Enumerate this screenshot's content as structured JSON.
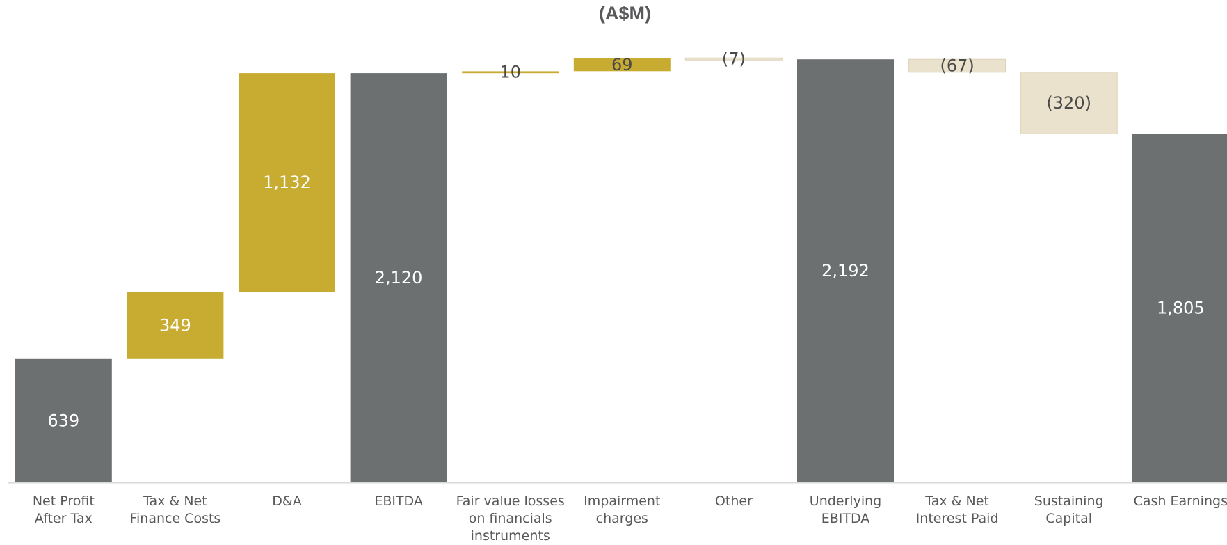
{
  "chart_data": {
    "type": "bar",
    "subtype": "waterfall",
    "title": "(A$M)",
    "xlabel": "",
    "ylabel": "",
    "ylim": [
      0,
      2200
    ],
    "grid": false,
    "legend": "none",
    "categories": [
      "Net Profit\nAfter Tax",
      "Tax & Net\nFinance Costs",
      "D&A",
      "EBITDA",
      "Fair value losses\non financials\ninstruments",
      "Impairment\ncharges",
      "Other",
      "Underlying\nEBITDA",
      "Tax & Net\nInterest Paid",
      "Sustaining\nCapital",
      "Cash Earnings"
    ],
    "values": [
      639,
      349,
      1132,
      2120,
      10,
      69,
      -7,
      2192,
      -67,
      -320,
      1805
    ],
    "value_labels": [
      "639",
      "349",
      "1,132",
      "2,120",
      "10",
      "69",
      "(7)",
      "2,192",
      "(67)",
      "(320)",
      "1,805"
    ],
    "kinds": [
      "total",
      "increase",
      "increase",
      "total",
      "increase",
      "increase",
      "decrease",
      "total",
      "decrease",
      "decrease",
      "total"
    ],
    "colors": {
      "total": "#6d7070",
      "increase": "#c8ac31",
      "decrease": "#ebe2cd",
      "label_light": "#ffffff",
      "label_dark": "#4a4a4a",
      "axis_text": "#595959",
      "title": "#59595b",
      "baseline": "#d9d9d9"
    }
  }
}
